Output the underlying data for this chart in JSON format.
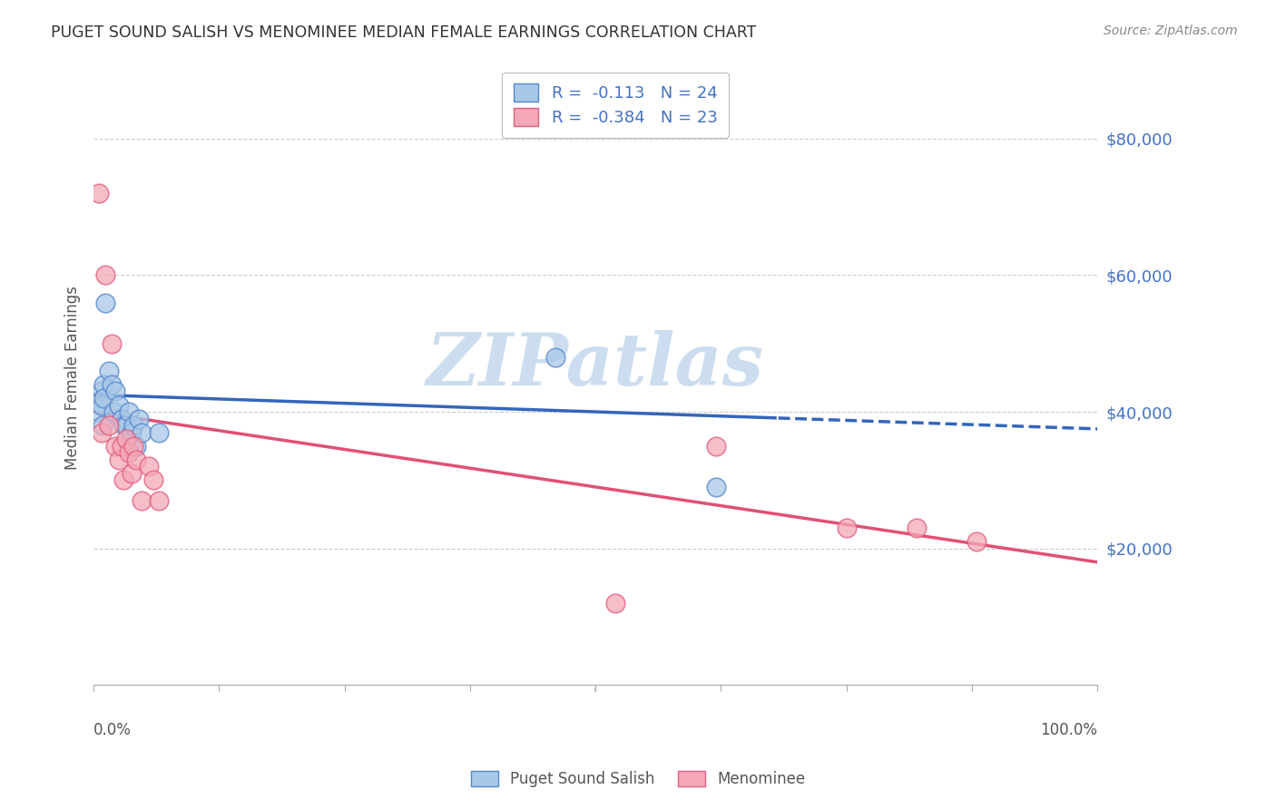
{
  "title": "PUGET SOUND SALISH VS MENOMINEE MEDIAN FEMALE EARNINGS CORRELATION CHART",
  "source": "Source: ZipAtlas.com",
  "ylabel": "Median Female Earnings",
  "y_ticks": [
    0,
    20000,
    40000,
    60000,
    80000
  ],
  "y_tick_labels": [
    "",
    "$20,000",
    "$40,000",
    "$60,000",
    "$80,000"
  ],
  "xlim": [
    0.0,
    1.0
  ],
  "ylim": [
    0,
    90000
  ],
  "watermark": "ZIPatlas",
  "blue_R": "-0.113",
  "blue_N": "24",
  "pink_R": "-0.384",
  "pink_N": "23",
  "blue_scatter_x": [
    0.005,
    0.008,
    0.008,
    0.009,
    0.01,
    0.01,
    0.012,
    0.015,
    0.018,
    0.02,
    0.022,
    0.025,
    0.028,
    0.03,
    0.032,
    0.035,
    0.038,
    0.04,
    0.042,
    0.045,
    0.048,
    0.065,
    0.46,
    0.62
  ],
  "blue_scatter_y": [
    40000,
    43000,
    41000,
    38000,
    44000,
    42000,
    56000,
    46000,
    44000,
    40000,
    43000,
    41000,
    39000,
    38000,
    38000,
    40000,
    37000,
    38000,
    35000,
    39000,
    37000,
    37000,
    48000,
    29000
  ],
  "pink_scatter_x": [
    0.005,
    0.008,
    0.012,
    0.015,
    0.018,
    0.022,
    0.025,
    0.028,
    0.03,
    0.032,
    0.035,
    0.038,
    0.04,
    0.042,
    0.048,
    0.055,
    0.06,
    0.065,
    0.52,
    0.62,
    0.75,
    0.82,
    0.88
  ],
  "pink_scatter_y": [
    72000,
    37000,
    60000,
    38000,
    50000,
    35000,
    33000,
    35000,
    30000,
    36000,
    34000,
    31000,
    35000,
    33000,
    27000,
    32000,
    30000,
    27000,
    12000,
    35000,
    23000,
    23000,
    21000
  ],
  "blue_color": "#a8c8e8",
  "pink_color": "#f4a8b8",
  "blue_edge_color": "#5588cc",
  "pink_edge_color": "#e06080",
  "blue_line_color": "#3366bb",
  "pink_line_color": "#e05075",
  "title_color": "#333333",
  "axis_label_color": "#555555",
  "right_tick_color": "#4472c4",
  "grid_color": "#cccccc",
  "watermark_color": "#ccddf0",
  "source_color": "#888888",
  "legend_text_color": "#4472c4",
  "background_color": "#ffffff",
  "blue_line_solid_end": 0.68,
  "blue_line_start": 0.0,
  "blue_line_end": 1.0,
  "pink_line_start": 0.0,
  "pink_line_end": 1.0,
  "blue_intercept": 42500,
  "blue_slope": -5000,
  "pink_intercept": 40000,
  "pink_slope": -22000
}
